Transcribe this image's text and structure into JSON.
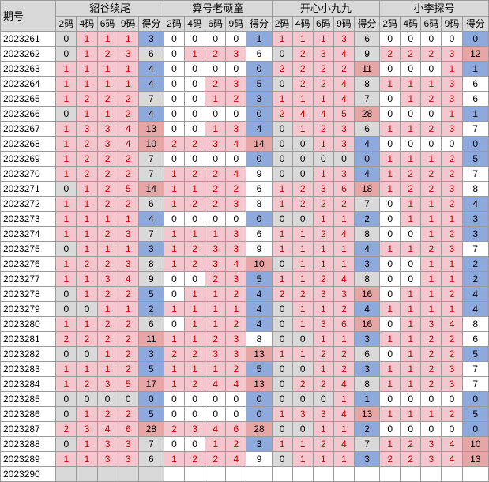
{
  "header": {
    "period_label": "期号",
    "groups": [
      "貂谷续尾",
      "算号老顽童",
      "开心小九九",
      "小李探号"
    ],
    "subcols": [
      "2码",
      "4码",
      "6码",
      "9码",
      "得分"
    ]
  },
  "colors": {
    "pink": "#f4c7cf",
    "blue": "#8ea9db",
    "red": "#e6a6a6",
    "gray": "#d9d9d9"
  },
  "rows": [
    {
      "p": "2023261",
      "g": [
        [
          0,
          1,
          1,
          1,
          3
        ],
        [
          0,
          0,
          0,
          0,
          1
        ],
        [
          1,
          1,
          1,
          3,
          6
        ],
        [
          0,
          0,
          0,
          0,
          0
        ]
      ]
    },
    {
      "p": "2023262",
      "g": [
        [
          0,
          1,
          2,
          3,
          6
        ],
        [
          0,
          1,
          2,
          3,
          6
        ],
        [
          0,
          2,
          3,
          4,
          9
        ],
        [
          2,
          2,
          2,
          3,
          12
        ]
      ]
    },
    {
      "p": "2023263",
      "g": [
        [
          1,
          1,
          1,
          1,
          4
        ],
        [
          0,
          0,
          0,
          0,
          0
        ],
        [
          2,
          2,
          2,
          2,
          11
        ],
        [
          0,
          0,
          0,
          1,
          1
        ]
      ]
    },
    {
      "p": "2023264",
      "g": [
        [
          1,
          1,
          1,
          1,
          4
        ],
        [
          0,
          0,
          2,
          3,
          5
        ],
        [
          0,
          2,
          2,
          4,
          8
        ],
        [
          1,
          1,
          1,
          3,
          6
        ]
      ]
    },
    {
      "p": "2023265",
      "g": [
        [
          1,
          2,
          2,
          2,
          7
        ],
        [
          0,
          0,
          1,
          2,
          3
        ],
        [
          1,
          1,
          1,
          4,
          7
        ],
        [
          0,
          1,
          2,
          3,
          6
        ]
      ]
    },
    {
      "p": "2023266",
      "g": [
        [
          0,
          1,
          1,
          2,
          4
        ],
        [
          0,
          0,
          0,
          0,
          0
        ],
        [
          2,
          4,
          4,
          5,
          28
        ],
        [
          0,
          0,
          0,
          1,
          1
        ]
      ]
    },
    {
      "p": "2023267",
      "g": [
        [
          1,
          3,
          3,
          4,
          13
        ],
        [
          0,
          0,
          1,
          3,
          4
        ],
        [
          0,
          1,
          2,
          3,
          6
        ],
        [
          1,
          1,
          2,
          3,
          7
        ]
      ]
    },
    {
      "p": "2023268",
      "g": [
        [
          1,
          2,
          3,
          4,
          10
        ],
        [
          2,
          2,
          3,
          4,
          14
        ],
        [
          0,
          0,
          1,
          3,
          4
        ],
        [
          0,
          0,
          0,
          0,
          0
        ]
      ]
    },
    {
      "p": "2023269",
      "g": [
        [
          1,
          2,
          2,
          2,
          7
        ],
        [
          0,
          0,
          0,
          0,
          0
        ],
        [
          0,
          0,
          0,
          0,
          0
        ],
        [
          1,
          1,
          1,
          2,
          5
        ]
      ]
    },
    {
      "p": "2023270",
      "g": [
        [
          1,
          2,
          2,
          2,
          7
        ],
        [
          1,
          2,
          2,
          4,
          9
        ],
        [
          0,
          0,
          1,
          3,
          4
        ],
        [
          1,
          2,
          2,
          2,
          7
        ]
      ]
    },
    {
      "p": "2023271",
      "g": [
        [
          0,
          1,
          2,
          5,
          14
        ],
        [
          1,
          1,
          2,
          2,
          6
        ],
        [
          1,
          2,
          3,
          6,
          18
        ],
        [
          1,
          2,
          2,
          3,
          8
        ]
      ]
    },
    {
      "p": "2023272",
      "g": [
        [
          1,
          1,
          2,
          2,
          6
        ],
        [
          1,
          2,
          2,
          3,
          8
        ],
        [
          1,
          2,
          2,
          2,
          7
        ],
        [
          0,
          1,
          1,
          2,
          4
        ]
      ]
    },
    {
      "p": "2023273",
      "g": [
        [
          1,
          1,
          1,
          1,
          4
        ],
        [
          0,
          0,
          0,
          0,
          0
        ],
        [
          0,
          0,
          1,
          1,
          2
        ],
        [
          0,
          1,
          1,
          1,
          3
        ]
      ]
    },
    {
      "p": "2023274",
      "g": [
        [
          1,
          1,
          2,
          3,
          7
        ],
        [
          1,
          1,
          1,
          3,
          6
        ],
        [
          1,
          1,
          2,
          4,
          8
        ],
        [
          0,
          0,
          1,
          2,
          3
        ]
      ]
    },
    {
      "p": "2023275",
      "g": [
        [
          0,
          1,
          1,
          1,
          3
        ],
        [
          1,
          2,
          3,
          3,
          9
        ],
        [
          1,
          1,
          1,
          1,
          4
        ],
        [
          1,
          1,
          2,
          3,
          7
        ]
      ]
    },
    {
      "p": "2023276",
      "g": [
        [
          1,
          2,
          2,
          3,
          8
        ],
        [
          1,
          2,
          3,
          4,
          10
        ],
        [
          0,
          1,
          1,
          1,
          3
        ],
        [
          0,
          0,
          1,
          1,
          2
        ]
      ]
    },
    {
      "p": "2023277",
      "g": [
        [
          1,
          1,
          3,
          4,
          9
        ],
        [
          0,
          0,
          2,
          3,
          5
        ],
        [
          1,
          1,
          2,
          4,
          8
        ],
        [
          0,
          0,
          1,
          1,
          2
        ]
      ]
    },
    {
      "p": "2023278",
      "g": [
        [
          0,
          1,
          2,
          2,
          5
        ],
        [
          0,
          1,
          1,
          2,
          4
        ],
        [
          2,
          2,
          3,
          3,
          16
        ],
        [
          0,
          1,
          1,
          2,
          4
        ]
      ]
    },
    {
      "p": "2023279",
      "g": [
        [
          0,
          0,
          1,
          1,
          2
        ],
        [
          1,
          1,
          1,
          1,
          4
        ],
        [
          0,
          1,
          1,
          2,
          4
        ],
        [
          1,
          1,
          1,
          1,
          4
        ]
      ]
    },
    {
      "p": "2023280",
      "g": [
        [
          1,
          1,
          2,
          2,
          6
        ],
        [
          0,
          1,
          1,
          2,
          4
        ],
        [
          0,
          1,
          3,
          6,
          16
        ],
        [
          0,
          1,
          3,
          4,
          8
        ]
      ]
    },
    {
      "p": "2023281",
      "g": [
        [
          2,
          2,
          2,
          2,
          11
        ],
        [
          1,
          1,
          2,
          3,
          8
        ],
        [
          0,
          0,
          1,
          1,
          3
        ],
        [
          1,
          1,
          2,
          2,
          6
        ]
      ]
    },
    {
      "p": "2023282",
      "g": [
        [
          0,
          0,
          1,
          2,
          3
        ],
        [
          2,
          2,
          3,
          3,
          13
        ],
        [
          1,
          1,
          2,
          2,
          6
        ],
        [
          0,
          1,
          2,
          2,
          5
        ]
      ]
    },
    {
      "p": "2023283",
      "g": [
        [
          1,
          1,
          1,
          2,
          5
        ],
        [
          1,
          1,
          1,
          2,
          5
        ],
        [
          0,
          0,
          1,
          2,
          3
        ],
        [
          1,
          1,
          2,
          3,
          7
        ]
      ]
    },
    {
      "p": "2023284",
      "g": [
        [
          1,
          2,
          3,
          5,
          17
        ],
        [
          1,
          2,
          4,
          4,
          13
        ],
        [
          0,
          2,
          2,
          4,
          8
        ],
        [
          1,
          1,
          2,
          3,
          7
        ]
      ]
    },
    {
      "p": "2023285",
      "g": [
        [
          0,
          0,
          0,
          0,
          0
        ],
        [
          0,
          0,
          0,
          0,
          0
        ],
        [
          0,
          0,
          0,
          1,
          1
        ],
        [
          0,
          0,
          0,
          0,
          0
        ]
      ]
    },
    {
      "p": "2023286",
      "g": [
        [
          0,
          1,
          2,
          2,
          5
        ],
        [
          0,
          0,
          0,
          0,
          0
        ],
        [
          1,
          3,
          3,
          4,
          13
        ],
        [
          1,
          1,
          1,
          2,
          5
        ]
      ]
    },
    {
      "p": "2023287",
      "g": [
        [
          2,
          3,
          4,
          6,
          28
        ],
        [
          2,
          3,
          4,
          6,
          28
        ],
        [
          0,
          0,
          1,
          1,
          2
        ],
        [
          0,
          0,
          0,
          0,
          0
        ]
      ]
    },
    {
      "p": "2023288",
      "g": [
        [
          0,
          1,
          3,
          3,
          7
        ],
        [
          0,
          0,
          1,
          2,
          3
        ],
        [
          1,
          1,
          2,
          4,
          7
        ],
        [
          1,
          2,
          3,
          4,
          10
        ]
      ]
    },
    {
      "p": "2023289",
      "g": [
        [
          1,
          1,
          3,
          3,
          6
        ],
        [
          1,
          2,
          2,
          4,
          9
        ],
        [
          0,
          1,
          1,
          1,
          3
        ],
        [
          2,
          2,
          3,
          4,
          13
        ]
      ]
    },
    {
      "p": "2023290",
      "g": null
    }
  ]
}
